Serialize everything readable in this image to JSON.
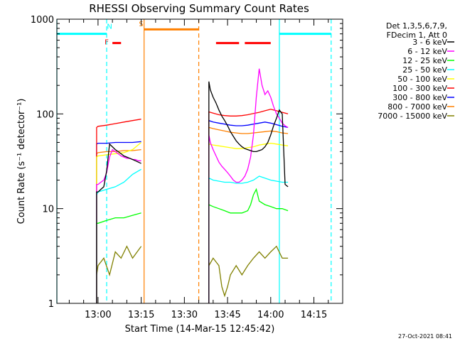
{
  "chart_data": {
    "type": "line",
    "title": "RHESSI Observing Summary Count Rates",
    "xlabel": "Start Time (14-Mar-15 12:45:42)",
    "ylabel": "Count Rate (s⁻¹ detector⁻¹)",
    "ylim": [
      1,
      1000
    ],
    "yscale": "log",
    "xlim": [
      "12:45:42",
      "14:25:00"
    ],
    "x_ticks": [
      "13:00",
      "13:15",
      "13:30",
      "13:45",
      "14:00",
      "14:15"
    ],
    "y_ticks": [
      "1",
      "10",
      "100",
      "1000"
    ],
    "grid": false,
    "legend_title": [
      "Det 1,3,5,6,7,9,",
      "FDecim 1, Att 0"
    ],
    "legend_position": "top-right",
    "timestamp": "27-Oct-2021 08:41",
    "series": [
      {
        "name": "3 - 6 keV",
        "color": "#000000",
        "segments": [
          {
            "x": [
              "12:59:30",
              "13:00",
              "13:01",
              "13:02",
              "13:03",
              "13:04",
              "13:05",
              "13:06",
              "13:07",
              "13:08",
              "13:09",
              "13:10",
              "13:11",
              "13:12",
              "13:13",
              "13:14",
              "13:15"
            ],
            "y": [
              15,
              15,
              16,
              17,
              25,
              48,
              45,
              42,
              40,
              38,
              36,
              35,
              34,
              33,
              32,
              31,
              30
            ]
          },
          {
            "x": [
              "13:38:30",
              "13:39",
              "13:40",
              "13:41",
              "13:42",
              "13:43",
              "13:44",
              "13:45",
              "13:46",
              "13:47",
              "13:48",
              "13:49",
              "13:50",
              "13:51",
              "13:52",
              "13:53",
              "13:54",
              "13:55",
              "13:56",
              "13:57",
              "13:58",
              "13:59",
              "14:00",
              "14:01",
              "14:02",
              "14:03",
              "14:04",
              "14:05",
              "14:06"
            ],
            "y": [
              220,
              180,
              150,
              130,
              110,
              95,
              85,
              75,
              65,
              58,
              52,
              48,
              45,
              43,
              42,
              41,
              40,
              40,
              41,
              42,
              45,
              50,
              60,
              75,
              90,
              110,
              100,
              18,
              17
            ]
          }
        ]
      },
      {
        "name": "6 - 12 keV",
        "color": "#ff00ff",
        "segments": [
          {
            "x": [
              "12:59:30",
              "13:00",
              "13:01",
              "13:02",
              "13:03",
              "13:04",
              "13:05",
              "13:06",
              "13:07",
              "13:08",
              "13:09",
              "13:10",
              "13:11",
              "13:12",
              "13:13",
              "13:14",
              "13:15"
            ],
            "y": [
              18,
              18,
              19,
              20,
              24,
              35,
              42,
              40,
              38,
              36,
              35,
              34,
              34,
              33,
              33,
              32,
              32
            ]
          },
          {
            "x": [
              "13:38:30",
              "13:39",
              "13:40",
              "13:41",
              "13:42",
              "13:43",
              "13:44",
              "13:45",
              "13:46",
              "13:47",
              "13:48",
              "13:49",
              "13:50",
              "13:51",
              "13:52",
              "13:53",
              "13:54",
              "13:55",
              "13:56",
              "13:57",
              "13:58",
              "13:59",
              "14:00",
              "14:01",
              "14:02",
              "14:03",
              "14:04",
              "14:05",
              "14:06"
            ],
            "y": [
              60,
              50,
              42,
              36,
              31,
              28,
              26,
              24,
              22,
              20,
              19,
              19,
              20,
              22,
              26,
              35,
              60,
              150,
              300,
              200,
              160,
              175,
              150,
              120,
              100,
              90,
              80,
              75,
              72
            ]
          }
        ]
      },
      {
        "name": "12 - 25 keV",
        "color": "#00ff00",
        "segments": [
          {
            "x": [
              "12:59:30",
              "13:00",
              "13:03",
              "13:06",
              "13:09",
              "13:12",
              "13:15"
            ],
            "y": [
              7,
              7,
              7.5,
              8,
              8,
              8.5,
              9
            ]
          },
          {
            "x": [
              "13:38:30",
              "13:40",
              "13:42",
              "13:44",
              "13:46",
              "13:48",
              "13:50",
              "13:52",
              "13:53",
              "13:54",
              "13:55",
              "13:56",
              "13:58",
              "14:00",
              "14:02",
              "14:04",
              "14:06"
            ],
            "y": [
              11,
              10.5,
              10,
              9.5,
              9,
              9,
              9,
              9.5,
              11,
              14,
              16,
              12,
              11,
              10.5,
              10,
              10,
              9.5
            ]
          }
        ]
      },
      {
        "name": "25 - 50 keV",
        "color": "#00ffff",
        "segments": [
          {
            "x": [
              "12:59:30",
              "13:00",
              "13:03",
              "13:06",
              "13:09",
              "13:12",
              "13:15"
            ],
            "y": [
              14,
              15,
              16,
              17,
              19,
              23,
              26
            ]
          },
          {
            "x": [
              "13:38:30",
              "13:40",
              "13:42",
              "13:44",
              "13:46",
              "13:48",
              "13:50",
              "13:52",
              "13:54",
              "13:56",
              "13:58",
              "14:00",
              "14:02",
              "14:04",
              "14:06"
            ],
            "y": [
              21,
              20,
              19.5,
              19,
              19,
              18.5,
              18.5,
              19,
              20,
              22,
              21,
              20,
              19.5,
              19,
              19
            ]
          }
        ]
      },
      {
        "name": "50 - 100 keV",
        "color": "#ffff00",
        "segments": [
          {
            "x": [
              "12:59:30",
              "13:00",
              "13:03",
              "13:06",
              "13:09",
              "13:12",
              "13:15"
            ],
            "y": [
              35,
              36,
              37,
              38,
              39,
              42,
              50
            ]
          },
          {
            "x": [
              "13:38:30",
              "13:40",
              "13:42",
              "13:44",
              "13:46",
              "13:48",
              "13:50",
              "13:52",
              "13:54",
              "13:56",
              "13:58",
              "14:00",
              "14:02",
              "14:04",
              "14:06"
            ],
            "y": [
              48,
              47,
              46,
              45,
              44,
              43,
              43,
              44,
              45,
              47,
              48,
              49,
              48,
              47,
              46
            ]
          }
        ]
      },
      {
        "name": "100 - 300 keV",
        "color": "#ff0000",
        "segments": [
          {
            "x": [
              "12:59:30",
              "13:00",
              "13:03",
              "13:06",
              "13:09",
              "13:12",
              "13:15"
            ],
            "y": [
              72,
              74,
              76,
              79,
              82,
              85,
              88
            ]
          },
          {
            "x": [
              "13:38:30",
              "13:40",
              "13:42",
              "13:44",
              "13:46",
              "13:48",
              "13:50",
              "13:52",
              "13:54",
              "13:56",
              "13:58",
              "14:00",
              "14:02",
              "14:04",
              "14:06"
            ],
            "y": [
              105,
              102,
              98,
              96,
              95,
              95,
              96,
              98,
              101,
              104,
              108,
              112,
              108,
              104,
              100
            ]
          }
        ]
      },
      {
        "name": "300 - 800 keV",
        "color": "#0000ff",
        "segments": [
          {
            "x": [
              "12:59:30",
              "13:00",
              "13:03",
              "13:06",
              "13:09",
              "13:12",
              "13:15"
            ],
            "y": [
              48,
              49,
              49,
              50,
              50,
              50,
              51
            ]
          },
          {
            "x": [
              "13:38:30",
              "13:40",
              "13:42",
              "13:44",
              "13:46",
              "13:48",
              "13:50",
              "13:52",
              "13:54",
              "13:56",
              "13:58",
              "14:00",
              "14:02",
              "14:04",
              "14:06"
            ],
            "y": [
              85,
              82,
              80,
              78,
              76,
              75,
              75,
              76,
              78,
              80,
              82,
              80,
              77,
              74,
              72
            ]
          }
        ]
      },
      {
        "name": "800 - 7000 keV",
        "color": "#ff8000",
        "segments": [
          {
            "x": [
              "12:59:30",
              "13:00",
              "13:03",
              "13:06",
              "13:09",
              "13:12",
              "13:15"
            ],
            "y": [
              38,
              39,
              40,
              40,
              41,
              41,
              42
            ]
          },
          {
            "x": [
              "13:38:30",
              "13:40",
              "13:42",
              "13:44",
              "13:46",
              "13:48",
              "13:50",
              "13:52",
              "13:54",
              "13:56",
              "13:58",
              "14:00",
              "14:02",
              "14:04",
              "14:06"
            ],
            "y": [
              72,
              70,
              68,
              66,
              64,
              63,
              62,
              62,
              63,
              64,
              65,
              66,
              65,
              63,
              62
            ]
          }
        ]
      },
      {
        "name": "7000 - 15000 keV",
        "color": "#808000",
        "segments": [
          {
            "x": [
              "12:59:30",
              "13:00",
              "13:02",
              "13:04",
              "13:06",
              "13:08",
              "13:10",
              "13:12",
              "13:15"
            ],
            "y": [
              2,
              2.5,
              3,
              2,
              3.5,
              3,
              4,
              3,
              4
            ]
          },
          {
            "x": [
              "13:38:30",
              "13:40",
              "13:42",
              "13:43",
              "13:44",
              "13:45",
              "13:46",
              "13:48",
              "13:50",
              "13:52",
              "13:54",
              "13:56",
              "13:58",
              "14:00",
              "14:02",
              "14:04",
              "14:06"
            ],
            "y": [
              2.5,
              3,
              2.5,
              1.5,
              1.2,
              1.5,
              2,
              2.5,
              2,
              2.5,
              3,
              3.5,
              3,
              3.5,
              4,
              3,
              3
            ]
          }
        ]
      }
    ],
    "annotations": [
      {
        "type": "bar",
        "color": "#00ffff",
        "x": [
          "12:45:42",
          "13:03"
        ],
        "y": 700
      },
      {
        "type": "bar",
        "color": "#00ffff",
        "x": [
          "14:03",
          "14:21"
        ],
        "y": 700
      },
      {
        "type": "bar",
        "color": "#ff8000",
        "x": [
          "13:16",
          "13:35"
        ],
        "y": 780
      },
      {
        "type": "bar",
        "color": "#ff0000",
        "x": [
          "13:05",
          "13:08"
        ],
        "y": 560
      },
      {
        "type": "bar",
        "color": "#ff0000",
        "x": [
          "13:41",
          "13:49"
        ],
        "y": 560
      },
      {
        "type": "bar",
        "color": "#ff0000",
        "x": [
          "13:51",
          "14:00"
        ],
        "y": 560
      },
      {
        "type": "label",
        "text": "N",
        "color": "#00ffff",
        "x": "13:04",
        "y": 850
      },
      {
        "type": "label",
        "text": "S",
        "color": "#ff8000",
        "x": "13:15",
        "y": 900
      },
      {
        "type": "label",
        "text": "F",
        "color": "#ff0000",
        "x": "13:03",
        "y": 580
      },
      {
        "type": "vline",
        "color": "#00ffff",
        "style": "solid",
        "x": "12:45:42"
      },
      {
        "type": "vline",
        "color": "#00ffff",
        "style": "dashed",
        "x": "13:03"
      },
      {
        "type": "vline",
        "color": "#ff8000",
        "style": "solid",
        "x": "13:16"
      },
      {
        "type": "vline",
        "color": "#ff8000",
        "style": "dashed",
        "x": "13:35"
      },
      {
        "type": "vline",
        "color": "#00ffff",
        "style": "solid",
        "x": "14:03"
      },
      {
        "type": "vline",
        "color": "#00ffff",
        "style": "dashed",
        "x": "14:21"
      }
    ]
  }
}
